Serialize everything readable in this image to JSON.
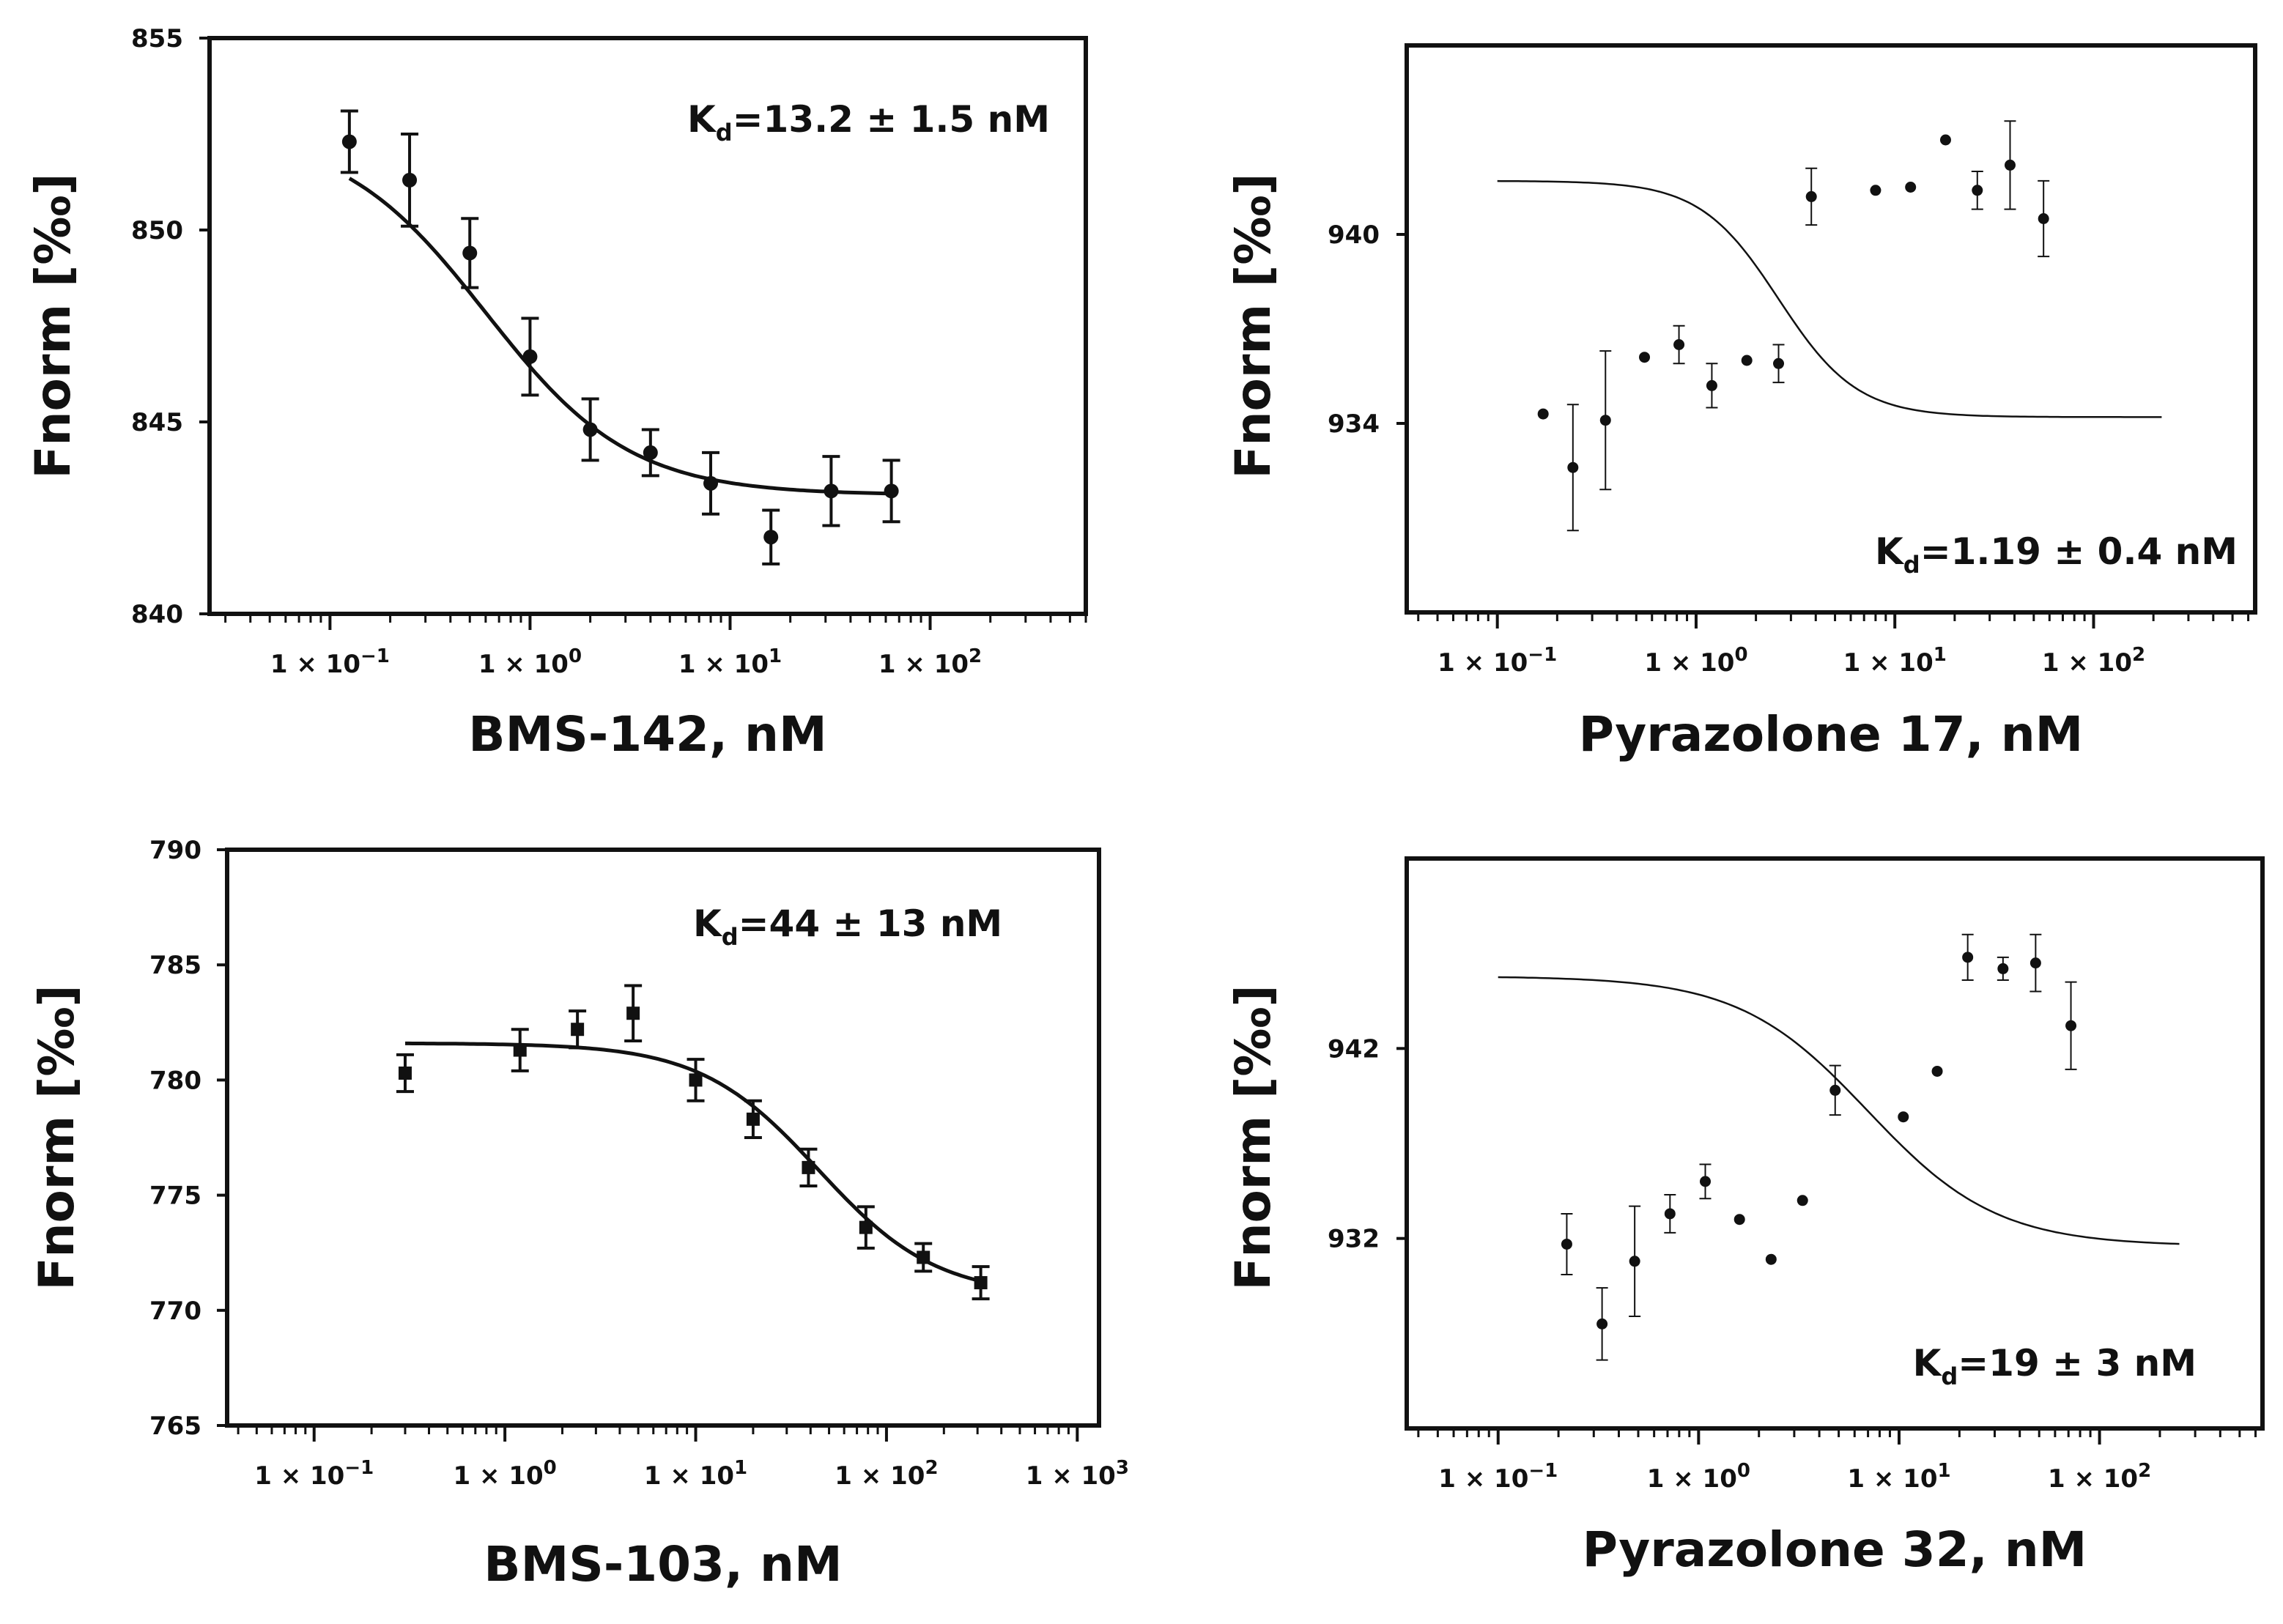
{
  "chart_data": [
    {
      "type": "scatter",
      "id": "bms142",
      "xlabel": "BMS-142, nM",
      "ylabel": "Fnorm [‰]",
      "x_scale": "log",
      "xlim": [
        0.025,
        600
      ],
      "x_ticks": [
        0.1,
        1,
        10,
        100
      ],
      "x_tick_labels": [
        {
          "mant": "1 × 10",
          "exp": "−1"
        },
        {
          "mant": "1 × 10",
          "exp": "0"
        },
        {
          "mant": "1 × 10",
          "exp": "1"
        },
        {
          "mant": "1 × 10",
          "exp": "2"
        }
      ],
      "ylim": [
        840,
        855
      ],
      "y_ticks": [
        840,
        845,
        850,
        855
      ],
      "y_tick_labels": [
        "840",
        "845",
        "850",
        "855"
      ],
      "annotation": {
        "main": "K",
        "sub": "d",
        "rest": "=13.2  ± 1.5 nM"
      },
      "marker": "circle",
      "fit_line_width": 5,
      "fit": {
        "top": 852.6,
        "bottom": 843.1,
        "ec50": 0.6,
        "hill": 1.2,
        "x_range": [
          0.125,
          64
        ]
      },
      "points": [
        {
          "x": 0.125,
          "y": 852.3,
          "err": 0.8
        },
        {
          "x": 0.25,
          "y": 851.3,
          "err": 1.2
        },
        {
          "x": 0.5,
          "y": 849.4,
          "err": 0.9
        },
        {
          "x": 1,
          "y": 846.7,
          "err": 1.0
        },
        {
          "x": 2,
          "y": 844.8,
          "err": 0.8
        },
        {
          "x": 4,
          "y": 844.2,
          "err": 0.6
        },
        {
          "x": 8,
          "y": 843.4,
          "err": 0.8
        },
        {
          "x": 16,
          "y": 842.0,
          "err": 0.7
        },
        {
          "x": 32,
          "y": 843.2,
          "err": 0.9
        },
        {
          "x": 64,
          "y": 843.2,
          "err": 0.8
        }
      ]
    },
    {
      "type": "scatter",
      "id": "pyrazolone17",
      "xlabel": "Pyrazolone 17, nM",
      "ylabel": "Fnorm [‰]",
      "x_scale": "log",
      "xlim": [
        0.035,
        650
      ],
      "x_ticks": [
        0.1,
        1,
        10,
        100
      ],
      "x_tick_labels": [
        {
          "mant": "1 × 10",
          "exp": "−1"
        },
        {
          "mant": "1 × 10",
          "exp": "0"
        },
        {
          "mant": "1 × 10",
          "exp": "1"
        },
        {
          "mant": "1 × 10",
          "exp": "2"
        }
      ],
      "ylim": [
        928,
        946
      ],
      "y_ticks": [
        934,
        940
      ],
      "y_tick_labels": [
        "934",
        "940"
      ],
      "annotation": {
        "main": "K",
        "sub": "d",
        "rest": "=1.19  ± 0.4 nM"
      },
      "marker": "dot",
      "fit_line_width": 2.5,
      "fit": {
        "top": 941.7,
        "bottom": 934.2,
        "ec50": 2.6,
        "hill": 2.2,
        "x_range": [
          0.1,
          220
        ]
      },
      "points": [
        {
          "x": 0.17,
          "y": 934.3,
          "err": 0
        },
        {
          "x": 0.24,
          "y": 932.6,
          "err": 2.0
        },
        {
          "x": 0.35,
          "y": 934.1,
          "err": 2.2
        },
        {
          "x": 0.55,
          "y": 936.1,
          "err": 0
        },
        {
          "x": 0.82,
          "y": 936.5,
          "err": 0.6
        },
        {
          "x": 1.2,
          "y": 935.2,
          "err": 0.7
        },
        {
          "x": 1.8,
          "y": 936.0,
          "err": 0
        },
        {
          "x": 2.6,
          "y": 935.9,
          "err": 0.6
        },
        {
          "x": 3.8,
          "y": 941.2,
          "err": 0.9
        },
        {
          "x": 8,
          "y": 941.4,
          "err": 0
        },
        {
          "x": 12,
          "y": 941.5,
          "err": 0
        },
        {
          "x": 18,
          "y": 943.0,
          "err": 0
        },
        {
          "x": 26,
          "y": 941.4,
          "err": 0.6
        },
        {
          "x": 38,
          "y": 942.2,
          "err": 1.4
        },
        {
          "x": 56,
          "y": 940.5,
          "err": 1.2
        }
      ]
    },
    {
      "type": "scatter",
      "id": "bms103",
      "xlabel": "BMS-103, nM",
      "ylabel": "Fnorm [‰]",
      "x_scale": "log",
      "xlim": [
        0.035,
        1300
      ],
      "x_ticks": [
        0.1,
        1,
        10,
        100,
        1000
      ],
      "x_tick_labels": [
        {
          "mant": "1 × 10",
          "exp": "−1"
        },
        {
          "mant": "1 × 10",
          "exp": "0"
        },
        {
          "mant": "1 × 10",
          "exp": "1"
        },
        {
          "mant": "1 × 10",
          "exp": "2"
        },
        {
          "mant": "1 × 10",
          "exp": "3"
        }
      ],
      "ylim": [
        765,
        790
      ],
      "y_ticks": [
        765,
        770,
        775,
        780,
        785,
        790
      ],
      "y_tick_labels": [
        "765",
        "770",
        "775",
        "780",
        "785",
        "790"
      ],
      "annotation": {
        "main": "K",
        "sub": "d",
        "rest": "=44 ± 13 nM"
      },
      "marker": "square",
      "fit_line_width": 5,
      "fit": {
        "top": 781.6,
        "bottom": 770.6,
        "ec50": 44,
        "hill": 1.4,
        "x_range": [
          0.3,
          320
        ]
      },
      "points": [
        {
          "x": 0.3,
          "y": 780.3,
          "err": 0.8
        },
        {
          "x": 1.2,
          "y": 781.3,
          "err": 0.9
        },
        {
          "x": 2.4,
          "y": 782.2,
          "err": 0.8
        },
        {
          "x": 4.7,
          "y": 782.9,
          "err": 1.2
        },
        {
          "x": 10,
          "y": 780.0,
          "err": 0.9
        },
        {
          "x": 20,
          "y": 778.3,
          "err": 0.8
        },
        {
          "x": 39,
          "y": 776.2,
          "err": 0.8
        },
        {
          "x": 78,
          "y": 773.6,
          "err": 0.9
        },
        {
          "x": 156,
          "y": 772.3,
          "err": 0.6
        },
        {
          "x": 312,
          "y": 771.2,
          "err": 0.7
        }
      ]
    },
    {
      "type": "scatter",
      "id": "pyrazolone32",
      "xlabel": "Pyrazolone 32, nM",
      "ylabel": "Fnorm [‰]",
      "x_scale": "log",
      "xlim": [
        0.035,
        650
      ],
      "x_ticks": [
        0.1,
        1,
        10,
        100
      ],
      "x_tick_labels": [
        {
          "mant": "1 × 10",
          "exp": "−1"
        },
        {
          "mant": "1 × 10",
          "exp": "0"
        },
        {
          "mant": "1 × 10",
          "exp": "1"
        },
        {
          "mant": "1 × 10",
          "exp": "2"
        }
      ],
      "ylim": [
        922,
        952
      ],
      "y_ticks": [
        932,
        942
      ],
      "y_tick_labels": [
        "932",
        "942"
      ],
      "annotation": {
        "main": "K",
        "sub": "d",
        "rest": "=19  ± 3 nM"
      },
      "marker": "dot",
      "fit_line_width": 2.5,
      "fit": {
        "top": 945.8,
        "bottom": 931.6,
        "ec50": 7,
        "hill": 1.35,
        "x_range": [
          0.1,
          250
        ]
      },
      "points": [
        {
          "x": 0.22,
          "y": 931.7,
          "err": 1.6
        },
        {
          "x": 0.33,
          "y": 927.5,
          "err": 1.9
        },
        {
          "x": 0.48,
          "y": 930.8,
          "err": 2.9
        },
        {
          "x": 0.72,
          "y": 933.3,
          "err": 1.0
        },
        {
          "x": 1.08,
          "y": 935.0,
          "err": 0.9
        },
        {
          "x": 1.6,
          "y": 933.0,
          "err": 0
        },
        {
          "x": 2.3,
          "y": 930.9,
          "err": 0
        },
        {
          "x": 3.3,
          "y": 934.0,
          "err": 0
        },
        {
          "x": 4.8,
          "y": 939.8,
          "err": 1.3
        },
        {
          "x": 10.5,
          "y": 938.4,
          "err": 0
        },
        {
          "x": 15.5,
          "y": 940.8,
          "err": 0
        },
        {
          "x": 22,
          "y": 946.8,
          "err": 1.2
        },
        {
          "x": 33,
          "y": 946.2,
          "err": 0.6
        },
        {
          "x": 48,
          "y": 946.5,
          "err": 1.5
        },
        {
          "x": 72,
          "y": 943.2,
          "err": 2.3
        }
      ]
    }
  ]
}
